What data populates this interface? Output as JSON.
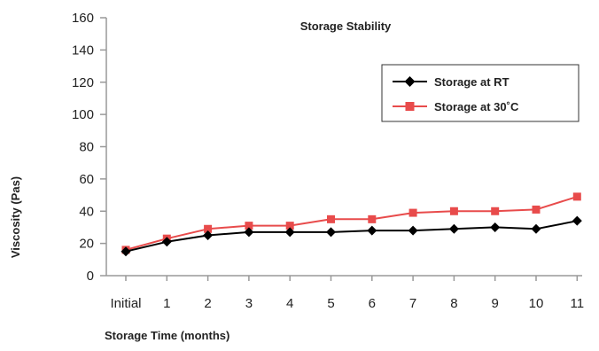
{
  "chart_data": {
    "type": "line",
    "title": "Storage Stability",
    "xlabel": "Storage Time (months)",
    "ylabel": "Viscosity (Pas)",
    "categories": [
      "Initial",
      "1",
      "2",
      "3",
      "4",
      "5",
      "6",
      "7",
      "8",
      "9",
      "10",
      "11"
    ],
    "ylim": [
      0,
      160
    ],
    "yticks": [
      0,
      20,
      40,
      60,
      80,
      100,
      120,
      140,
      160
    ],
    "grid": false,
    "legend_position": "top-right",
    "series": [
      {
        "name": "Storage at RT",
        "color": "#000000",
        "marker": "diamond",
        "values": [
          15,
          21,
          25,
          27,
          27,
          27,
          28,
          28,
          29,
          30,
          29,
          34
        ]
      },
      {
        "name": "Storage at 30˚C",
        "color": "#e84b4b",
        "marker": "square",
        "values": [
          16,
          23,
          29,
          31,
          31,
          35,
          35,
          39,
          40,
          40,
          41,
          49
        ]
      }
    ]
  }
}
